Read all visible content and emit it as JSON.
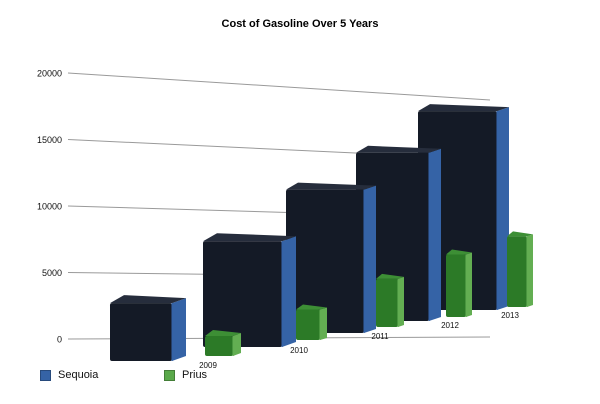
{
  "chart_data": {
    "type": "bar",
    "title": "Cost of Gasoline Over 5 Years",
    "categories": [
      "2009",
      "2010",
      "2011",
      "2012",
      "2013"
    ],
    "series": [
      {
        "name": "Sequoia",
        "values": [
          3000,
          7100,
          10700,
          13900,
          17000
        ]
      },
      {
        "name": "Prius",
        "values": [
          1000,
          2100,
          3700,
          5000,
          6600
        ]
      }
    ],
    "yticks": [
      0,
      5000,
      10000,
      15000,
      20000
    ],
    "ylim": [
      0,
      20000
    ],
    "xlabel": "",
    "ylabel": "",
    "grid": true,
    "legend_position": "bottom-left",
    "colors": {
      "sequoia_front": "#141a26",
      "sequoia_side": "#3563a6",
      "sequoia_top": "#262d3c",
      "prius_front": "#2c7a27",
      "prius_side": "#63ae52",
      "prius_top": "#3d8f35",
      "gridline": "#9a9a9a"
    }
  }
}
